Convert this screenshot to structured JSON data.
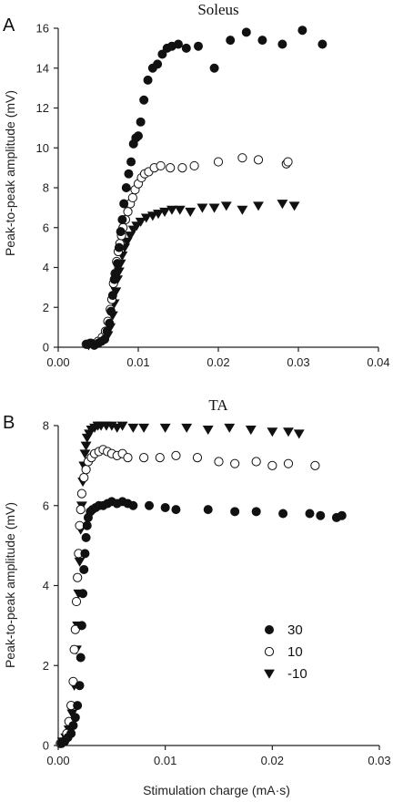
{
  "chart_data": [
    {
      "type": "scatter",
      "panel": "A",
      "title": "Soleus",
      "ylabel": "Peak-to-peak amplitude (mV)",
      "xlabel": "",
      "xlim": [
        0,
        0.04
      ],
      "ylim": [
        0,
        16
      ],
      "xticks": [
        0.0,
        0.01,
        0.02,
        0.03,
        0.04
      ],
      "xtick_labels": [
        "0.00",
        "0.01",
        "0.02",
        "0.03",
        "0.04"
      ],
      "yticks": [
        0,
        2,
        4,
        6,
        8,
        10,
        12,
        14,
        16
      ],
      "ytick_labels": [
        "0",
        "2",
        "4",
        "6",
        "8",
        "10",
        "12",
        "14",
        "16"
      ],
      "legend": false,
      "series": [
        {
          "name": "30",
          "marker": "filled-circle",
          "x": [
            0.0036,
            0.0041,
            0.0045,
            0.005,
            0.0054,
            0.0058,
            0.0061,
            0.0064,
            0.0066,
            0.0068,
            0.007,
            0.0072,
            0.0074,
            0.0076,
            0.0078,
            0.008,
            0.0082,
            0.0085,
            0.0088,
            0.0091,
            0.0094,
            0.0097,
            0.01,
            0.0103,
            0.0107,
            0.0112,
            0.0118,
            0.0124,
            0.013,
            0.0136,
            0.0142,
            0.015,
            0.016,
            0.0175,
            0.0195,
            0.0215,
            0.0235,
            0.0255,
            0.028,
            0.0305,
            0.033
          ],
          "y": [
            0.15,
            0.2,
            0.1,
            0.2,
            0.3,
            0.4,
            0.8,
            1.2,
            1.8,
            2.6,
            3.4,
            3.7,
            4.2,
            5.0,
            5.8,
            6.4,
            7.2,
            8.0,
            8.7,
            9.3,
            10.2,
            10.5,
            10.6,
            11.3,
            12.4,
            13.4,
            14.0,
            14.2,
            14.7,
            15.0,
            15.1,
            15.2,
            15.0,
            15.1,
            14.0,
            15.4,
            15.8,
            15.4,
            15.2,
            15.9,
            15.2
          ]
        },
        {
          "name": "10",
          "marker": "open-circle",
          "x": [
            0.0035,
            0.004,
            0.0045,
            0.005,
            0.0055,
            0.0059,
            0.0062,
            0.0065,
            0.0067,
            0.0069,
            0.0071,
            0.0073,
            0.0075,
            0.0077,
            0.0079,
            0.0081,
            0.0084,
            0.0087,
            0.009,
            0.0093,
            0.0096,
            0.01,
            0.0104,
            0.0108,
            0.0113,
            0.012,
            0.0128,
            0.014,
            0.0155,
            0.017,
            0.02,
            0.023,
            0.025,
            0.0285,
            0.0287
          ],
          "y": [
            0.15,
            0.2,
            0.15,
            0.3,
            0.5,
            0.8,
            1.3,
            1.9,
            2.4,
            3.2,
            3.7,
            4.3,
            4.8,
            5.2,
            5.6,
            6.0,
            6.4,
            6.8,
            7.2,
            7.5,
            7.9,
            8.2,
            8.5,
            8.7,
            8.8,
            9.0,
            9.1,
            9.0,
            9.0,
            9.1,
            9.3,
            9.5,
            9.4,
            9.2,
            9.3
          ]
        },
        {
          "name": "-10",
          "marker": "filled-triangle-down",
          "x": [
            0.0038,
            0.0043,
            0.0048,
            0.0053,
            0.0058,
            0.0062,
            0.0065,
            0.0068,
            0.007,
            0.0072,
            0.0074,
            0.0076,
            0.0078,
            0.008,
            0.0083,
            0.0086,
            0.009,
            0.0094,
            0.0098,
            0.0103,
            0.011,
            0.0118,
            0.0125,
            0.0133,
            0.0142,
            0.0152,
            0.0165,
            0.018,
            0.0195,
            0.021,
            0.023,
            0.025,
            0.028,
            0.0295
          ],
          "y": [
            0.1,
            0.15,
            0.2,
            0.3,
            0.4,
            0.6,
            1.0,
            1.6,
            2.2,
            2.8,
            3.4,
            3.8,
            4.2,
            4.6,
            5.0,
            5.3,
            5.6,
            5.9,
            6.1,
            6.3,
            6.5,
            6.6,
            6.7,
            6.8,
            6.9,
            6.9,
            6.8,
            7.0,
            7.0,
            7.1,
            6.9,
            7.1,
            7.2,
            7.1
          ]
        }
      ]
    },
    {
      "type": "scatter",
      "panel": "B",
      "title": "TA",
      "ylabel": "Peak-to-peak amplitude (mV)",
      "xlabel": "Stimulation charge (mA·s)",
      "xlim": [
        0,
        0.03
      ],
      "ylim": [
        0,
        8
      ],
      "xticks": [
        0.0,
        0.01,
        0.02,
        0.03
      ],
      "xtick_labels": [
        "0.00",
        "0.01",
        "0.02",
        "0.03"
      ],
      "yticks": [
        0,
        2,
        4,
        6,
        8
      ],
      "ytick_labels": [
        "0",
        "2",
        "4",
        "6",
        "8"
      ],
      "legend": true,
      "legend_position": "right-middle",
      "series": [
        {
          "name": "30",
          "marker": "filled-circle",
          "x": [
            0.0003,
            0.0006,
            0.0009,
            0.0012,
            0.0014,
            0.0016,
            0.0018,
            0.002,
            0.0021,
            0.0022,
            0.0023,
            0.0024,
            0.0025,
            0.0026,
            0.0027,
            0.0028,
            0.003,
            0.0032,
            0.0035,
            0.0038,
            0.0042,
            0.0046,
            0.005,
            0.0055,
            0.006,
            0.0065,
            0.007,
            0.0085,
            0.01,
            0.011,
            0.014,
            0.0165,
            0.0185,
            0.021,
            0.0235,
            0.0245,
            0.026,
            0.0265
          ],
          "y": [
            0.05,
            0.1,
            0.2,
            0.3,
            0.5,
            0.7,
            1.0,
            1.5,
            2.2,
            3.0,
            3.8,
            4.4,
            4.8,
            5.2,
            5.5,
            5.7,
            5.85,
            5.9,
            5.95,
            6.0,
            6.0,
            6.05,
            6.1,
            6.05,
            6.1,
            6.05,
            6.0,
            6.0,
            5.95,
            5.9,
            5.9,
            5.85,
            5.85,
            5.8,
            5.8,
            5.75,
            5.7,
            5.75
          ]
        },
        {
          "name": "10",
          "marker": "open-circle",
          "x": [
            0.0002,
            0.0005,
            0.0008,
            0.001,
            0.0012,
            0.0014,
            0.0015,
            0.0016,
            0.0017,
            0.0018,
            0.0019,
            0.002,
            0.0021,
            0.0022,
            0.0024,
            0.0026,
            0.0028,
            0.0031,
            0.0034,
            0.0038,
            0.0042,
            0.0046,
            0.005,
            0.0055,
            0.006,
            0.0065,
            0.008,
            0.0095,
            0.011,
            0.013,
            0.015,
            0.0165,
            0.0185,
            0.02,
            0.0215,
            0.024
          ],
          "y": [
            0.05,
            0.1,
            0.3,
            0.6,
            1.0,
            1.6,
            2.4,
            2.9,
            3.6,
            4.2,
            4.8,
            5.5,
            5.9,
            6.3,
            6.7,
            6.9,
            7.1,
            7.2,
            7.3,
            7.35,
            7.4,
            7.35,
            7.3,
            7.25,
            7.3,
            7.2,
            7.2,
            7.2,
            7.25,
            7.2,
            7.1,
            7.05,
            7.1,
            7.0,
            7.05,
            7.0
          ]
        },
        {
          "name": "-10",
          "marker": "filled-triangle-down",
          "x": [
            0.0004,
            0.0007,
            0.001,
            0.0013,
            0.0015,
            0.0017,
            0.0018,
            0.0019,
            0.002,
            0.0021,
            0.0022,
            0.0023,
            0.0024,
            0.0025,
            0.0026,
            0.0027,
            0.0029,
            0.0031,
            0.0034,
            0.0037,
            0.004,
            0.0045,
            0.005,
            0.0055,
            0.006,
            0.007,
            0.008,
            0.01,
            0.012,
            0.014,
            0.016,
            0.018,
            0.02,
            0.0215,
            0.0225
          ],
          "y": [
            0.1,
            0.2,
            0.4,
            0.8,
            1.5,
            2.4,
            3.0,
            3.8,
            4.6,
            5.4,
            6.0,
            6.6,
            7.0,
            7.3,
            7.5,
            7.7,
            7.8,
            7.9,
            7.95,
            8.0,
            8.0,
            8.0,
            8.0,
            7.95,
            8.0,
            7.95,
            7.95,
            7.95,
            7.95,
            7.9,
            7.95,
            7.9,
            7.85,
            7.85,
            7.8
          ]
        }
      ]
    }
  ]
}
